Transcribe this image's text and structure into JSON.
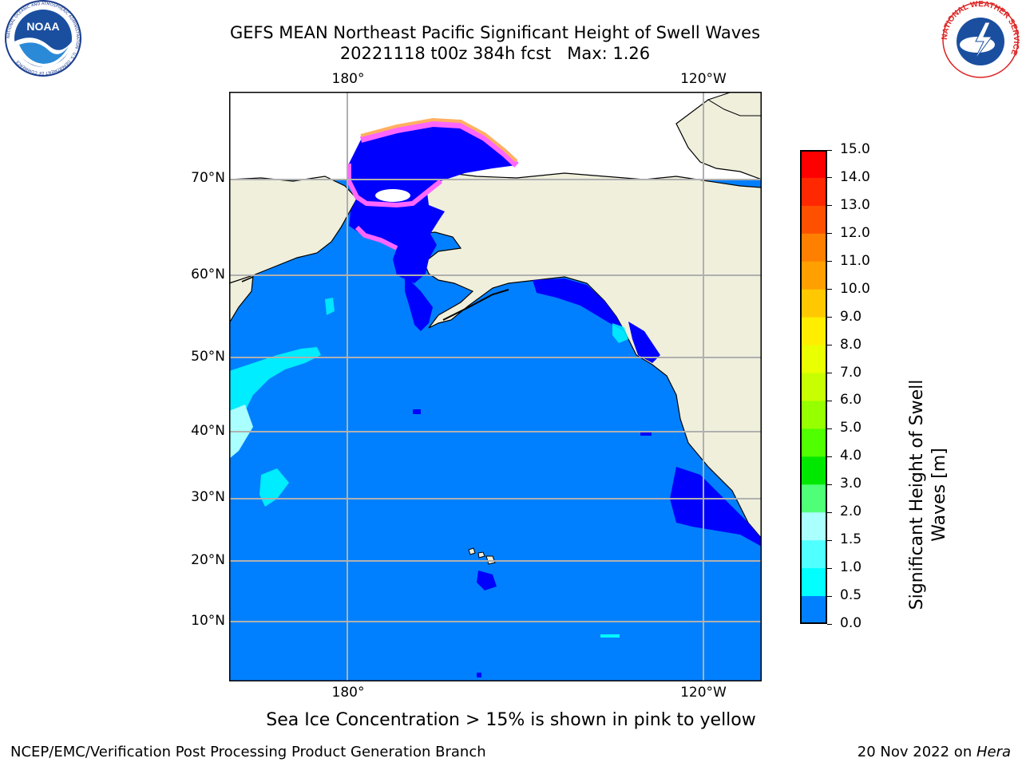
{
  "header": {
    "title_line1": "GEFS MEAN Northeast Pacific Significant Height of Swell Waves",
    "title_line2": "20221118 t00z 384h fcst   Max: 1.26"
  },
  "logos": {
    "noaa_text": "NOAA",
    "noaa_ring": "NATIONAL OCEANIC AND ATMOSPHERIC ADMINISTRATION · U.S. DEPARTMENT OF COMMERCE",
    "nws_ring": "NATIONAL WEATHER SERVICE"
  },
  "map": {
    "lon_ticks_top": [
      "180°",
      "120°W"
    ],
    "lon_ticks_bottom": [
      "180°",
      "120°W"
    ],
    "lat_ticks": [
      "70°N",
      "60°N",
      "50°N",
      "40°N",
      "30°N",
      "20°N",
      "10°N"
    ],
    "colors": {
      "ocean_main": "#0080ff",
      "ocean_low": "#0000ff",
      "ocean_cyan": "#00ffff",
      "land": "#efefdc",
      "ice_pink": "#ff66ff",
      "ice_orange": "#ffb060",
      "grid": "#b0b0b0"
    }
  },
  "colorbar": {
    "title_line1": "Significant Height of Swell",
    "title_line2": "Waves [m]",
    "ticks": [
      "15.0",
      "14.0",
      "13.0",
      "12.0",
      "11.0",
      "10.0",
      "9.0",
      "8.0",
      "7.0",
      "6.0",
      "5.0",
      "4.0",
      "3.0",
      "2.0",
      "1.5",
      "1.0",
      "0.5",
      "0.0"
    ],
    "colors": [
      "#ff0000",
      "#ff2800",
      "#ff5000",
      "#ff8000",
      "#ffa000",
      "#ffc800",
      "#ffee00",
      "#eaff00",
      "#c8ff00",
      "#96ff00",
      "#50ff00",
      "#00e800",
      "#50ff78",
      "#aaffff",
      "#50ffff",
      "#00ffff",
      "#0080ff",
      "#0000ff"
    ]
  },
  "caption": "Sea Ice Concentration > 15% is shown in pink to yellow",
  "footer": {
    "left": "NCEP/EMC/Verification Post Processing Product Generation Branch",
    "right_prefix": "20 Nov 2022 on ",
    "right_host": "Hera"
  }
}
